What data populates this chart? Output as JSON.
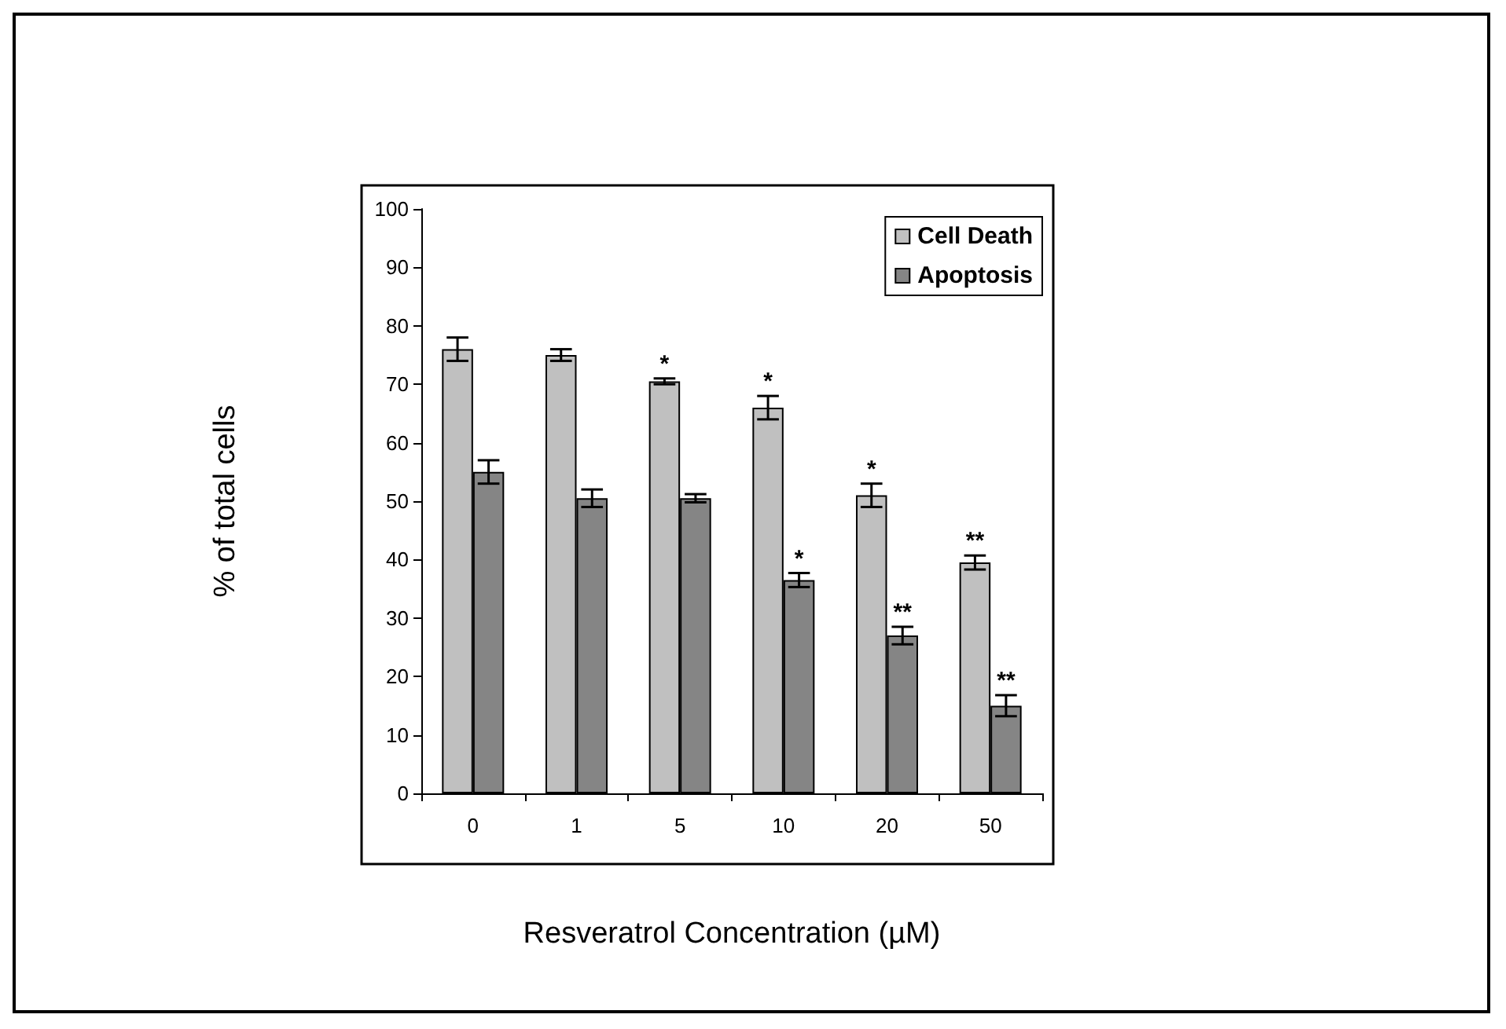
{
  "chart_data": {
    "type": "bar",
    "xlabel": "Resveratrol Concentration (µM)",
    "ylabel": "% of total cells",
    "categories": [
      "0",
      "1",
      "5",
      "10",
      "20",
      "50"
    ],
    "series": [
      {
        "name": "Cell Death",
        "color": "#c0c0c0",
        "values": [
          76,
          75,
          70.5,
          66,
          51,
          39.5
        ],
        "errors": [
          2,
          1,
          0.5,
          2,
          2,
          1.2
        ]
      },
      {
        "name": "Apoptosis",
        "color": "#858585",
        "values": [
          55,
          50.5,
          50.5,
          36.5,
          27,
          15
        ],
        "errors": [
          2,
          1.5,
          0.7,
          1.2,
          1.5,
          1.8
        ]
      }
    ],
    "ylim": [
      0,
      100
    ],
    "yticks": [
      0,
      10,
      20,
      30,
      40,
      50,
      60,
      70,
      80,
      90,
      100
    ],
    "grid": false,
    "legend": "top right",
    "annotations": [
      {
        "text": "*",
        "x": "5",
        "y": 70.5
      },
      {
        "text": "*",
        "x": "10",
        "y": 66
      },
      {
        "text": "*",
        "x": "20",
        "y": 51
      },
      {
        "text": "**",
        "x": "50",
        "y": 39.5
      },
      {
        "text": "*",
        "x": "10",
        "y": 36.5
      },
      {
        "text": "**",
        "x": "20",
        "y": 27
      },
      {
        "text": "**",
        "x": "50",
        "y": 15
      }
    ]
  }
}
